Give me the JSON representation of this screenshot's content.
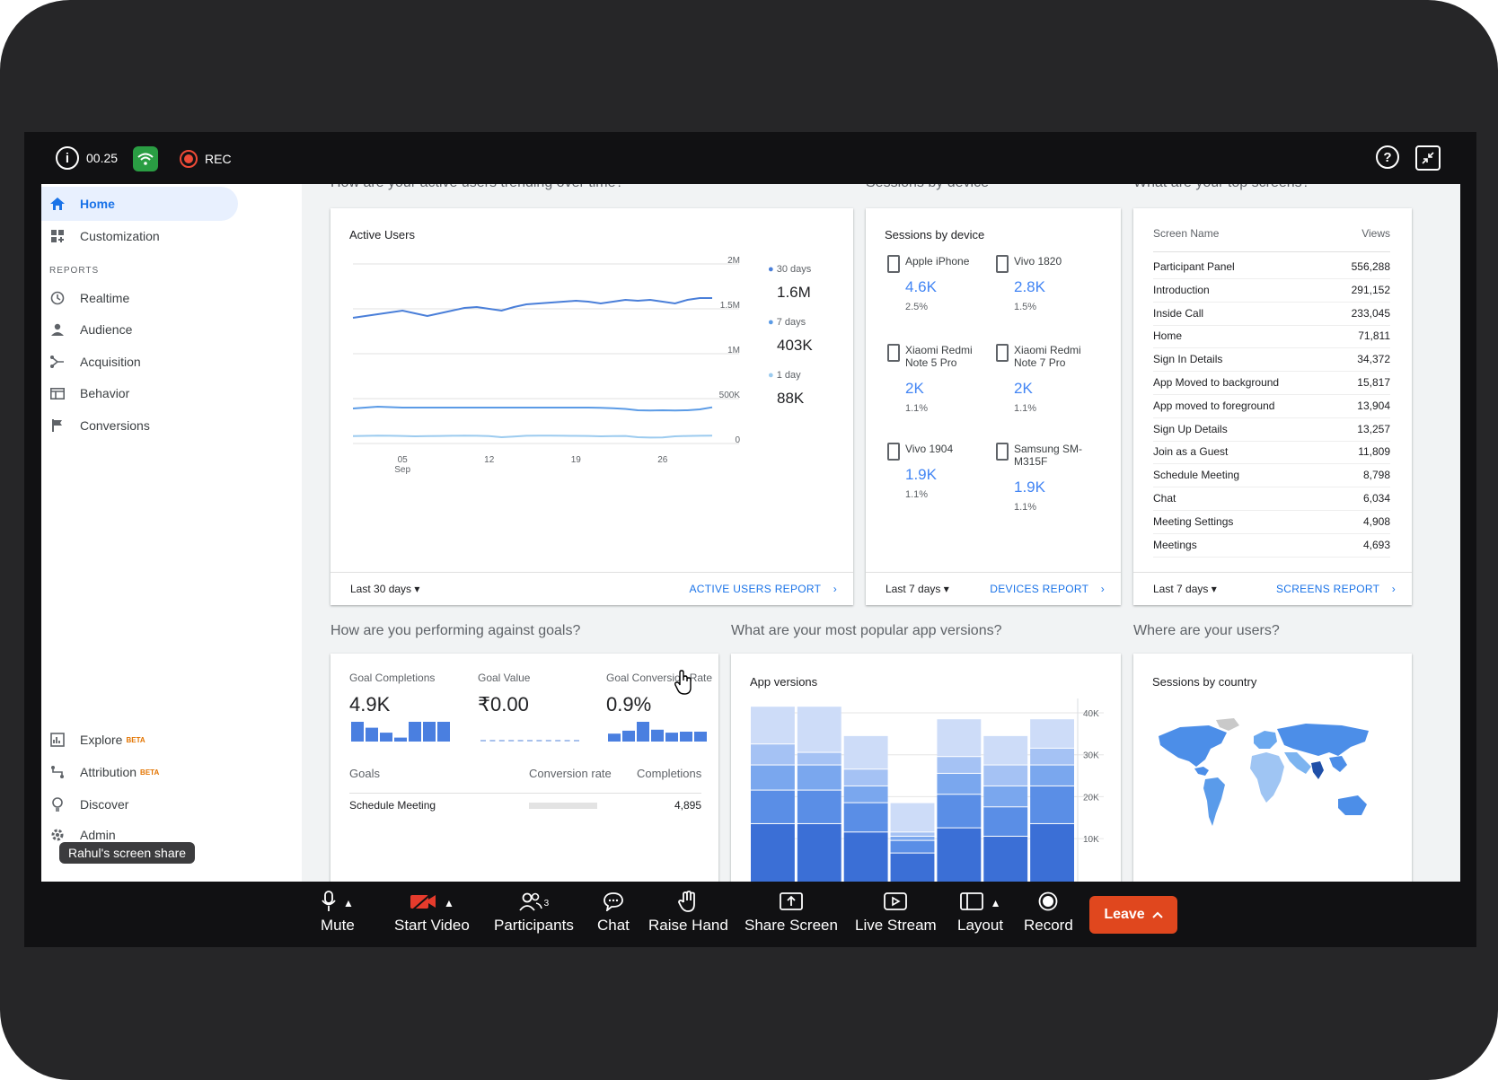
{
  "topbar": {
    "timer": "00.25",
    "rec_label": "REC"
  },
  "sidebar": {
    "home": "Home",
    "customization": "Customization",
    "section": "REPORTS",
    "items": [
      "Realtime",
      "Audience",
      "Acquisition",
      "Behavior",
      "Conversions"
    ],
    "explore": "Explore",
    "attribution": "Attribution",
    "beta": "BETA",
    "discover": "Discover",
    "admin": "Admin"
  },
  "toast": "Rahul's screen share",
  "sections": {
    "active_users_q": "How are your active users trending over time?",
    "devices_q": "Sessions by device",
    "screens_q": "What are your top screens?",
    "goals_q": "How are you performing against goals?",
    "versions_q": "What are your most popular app versions?",
    "users_q": "Where are your users?"
  },
  "active_users": {
    "title": "Active Users",
    "y_ticks": [
      "2M",
      "1.5M",
      "1M",
      "500K",
      "0"
    ],
    "x_ticks": [
      "05",
      "12",
      "19",
      "26"
    ],
    "x_sub": "Sep",
    "legend": [
      {
        "label": "30 days",
        "value": "1.6M",
        "color": "#4a7fd9"
      },
      {
        "label": "7 days",
        "value": "403K",
        "color": "#5b9be6"
      },
      {
        "label": "1 day",
        "value": "88K",
        "color": "#9ccbef"
      }
    ],
    "footer_left": "Last 30 days",
    "footer_right": "ACTIVE USERS REPORT"
  },
  "chart_data": {
    "type": "line",
    "title": "Active Users",
    "x": [
      "Sep 01",
      "Sep 02",
      "Sep 03",
      "Sep 04",
      "Sep 05",
      "Sep 06",
      "Sep 07",
      "Sep 08",
      "Sep 09",
      "Sep 10",
      "Sep 11",
      "Sep 12",
      "Sep 13",
      "Sep 14",
      "Sep 15",
      "Sep 16",
      "Sep 17",
      "Sep 18",
      "Sep 19",
      "Sep 20",
      "Sep 21",
      "Sep 22",
      "Sep 23",
      "Sep 24",
      "Sep 25",
      "Sep 26",
      "Sep 27",
      "Sep 28",
      "Sep 29",
      "Sep 30"
    ],
    "ylim": [
      0,
      2000000
    ],
    "series": [
      {
        "name": "30 days",
        "color": "#4a7fd9",
        "values": [
          1400000,
          1420000,
          1440000,
          1460000,
          1480000,
          1450000,
          1420000,
          1450000,
          1480000,
          1510000,
          1520000,
          1500000,
          1480000,
          1520000,
          1550000,
          1560000,
          1570000,
          1580000,
          1590000,
          1580000,
          1560000,
          1580000,
          1600000,
          1590000,
          1600000,
          1580000,
          1560000,
          1600000,
          1620000,
          1620000
        ]
      },
      {
        "name": "7 days",
        "color": "#5b9be6",
        "values": [
          390000,
          400000,
          410000,
          405000,
          400000,
          400000,
          400000,
          400000,
          400000,
          400000,
          400000,
          400000,
          400000,
          400000,
          400000,
          400000,
          400000,
          400000,
          400000,
          400000,
          398000,
          392000,
          385000,
          370000,
          368000,
          370000,
          368000,
          370000,
          380000,
          403000
        ]
      },
      {
        "name": "1 day",
        "color": "#9ccbef",
        "values": [
          82000,
          85000,
          88000,
          86000,
          84000,
          80000,
          82000,
          84000,
          86000,
          88000,
          86000,
          82000,
          70000,
          78000,
          86000,
          88000,
          87000,
          86000,
          85000,
          84000,
          80000,
          82000,
          84000,
          70000,
          66000,
          68000,
          80000,
          84000,
          86000,
          88000
        ]
      }
    ]
  },
  "devices": {
    "title": "Sessions by device",
    "items": [
      {
        "name": "Apple iPhone",
        "value": "4.6K",
        "pct": "2.5%"
      },
      {
        "name": "Vivo 1820",
        "value": "2.8K",
        "pct": "1.5%"
      },
      {
        "name": "Xiaomi Redmi Note 5 Pro",
        "value": "2K",
        "pct": "1.1%"
      },
      {
        "name": "Xiaomi Redmi Note 7 Pro",
        "value": "2K",
        "pct": "1.1%"
      },
      {
        "name": "Vivo 1904",
        "value": "1.9K",
        "pct": "1.1%"
      },
      {
        "name": "Samsung SM-M315F",
        "value": "1.9K",
        "pct": "1.1%"
      }
    ],
    "footer_left": "Last 7 days",
    "footer_right": "DEVICES REPORT"
  },
  "screens": {
    "col_name": "Screen Name",
    "col_views": "Views",
    "rows": [
      {
        "name": "Participant Panel",
        "views": "556,288"
      },
      {
        "name": "Introduction",
        "views": "291,152"
      },
      {
        "name": "Inside Call",
        "views": "233,045"
      },
      {
        "name": "Home",
        "views": "71,811"
      },
      {
        "name": "Sign In Details",
        "views": "34,372"
      },
      {
        "name": "App Moved to background",
        "views": "15,817"
      },
      {
        "name": "App moved to foreground",
        "views": "13,904"
      },
      {
        "name": "Sign Up Details",
        "views": "13,257"
      },
      {
        "name": "Join as a Guest",
        "views": "11,809"
      },
      {
        "name": "Schedule Meeting",
        "views": "8,798"
      },
      {
        "name": "Chat",
        "views": "6,034"
      },
      {
        "name": "Meeting Settings",
        "views": "4,908"
      },
      {
        "name": "Meetings",
        "views": "4,693"
      }
    ],
    "footer_left": "Last 7 days",
    "footer_right": "SCREENS REPORT"
  },
  "goals": {
    "completions_label": "Goal Completions",
    "completions_value": "4.9K",
    "completions_spark": [
      1.0,
      0.7,
      0.45,
      0.2,
      1.0,
      1.0,
      1.0
    ],
    "value_label": "Goal Value",
    "value_value": "₹0.00",
    "rate_label": "Goal Conversion Rate",
    "rate_value": "0.9%",
    "rate_spark": [
      0.4,
      0.55,
      1.0,
      0.6,
      0.45,
      0.5,
      0.5
    ],
    "table_goals": "Goals",
    "table_rate": "Conversion rate",
    "table_completions": "Completions",
    "row_name": "Schedule Meeting",
    "row_completions": "4,895"
  },
  "versions": {
    "title": "App versions",
    "y_ticks": [
      "40K",
      "30K",
      "20K",
      "10K"
    ],
    "bars": [
      [
        15,
        8,
        6,
        5,
        9
      ],
      [
        15,
        8,
        6,
        3,
        11
      ],
      [
        13,
        7,
        4,
        4,
        8
      ],
      [
        8,
        3,
        1,
        1,
        7
      ],
      [
        14,
        8,
        5,
        4,
        9
      ],
      [
        12,
        7,
        5,
        5,
        7
      ],
      [
        15,
        9,
        5,
        4,
        7
      ]
    ],
    "colors": [
      "#3b6fd6",
      "#5a8ee6",
      "#7aa7ee",
      "#a5c2f4",
      "#cddcf8"
    ]
  },
  "map": {
    "title": "Sessions by country"
  },
  "controls": {
    "mute": "Mute",
    "start_video": "Start Video",
    "participants": "Participants",
    "participants_count": "3",
    "chat": "Chat",
    "raise_hand": "Raise Hand",
    "share_screen": "Share Screen",
    "live_stream": "Live Stream",
    "layout": "Layout",
    "record": "Record",
    "leave": "Leave"
  }
}
